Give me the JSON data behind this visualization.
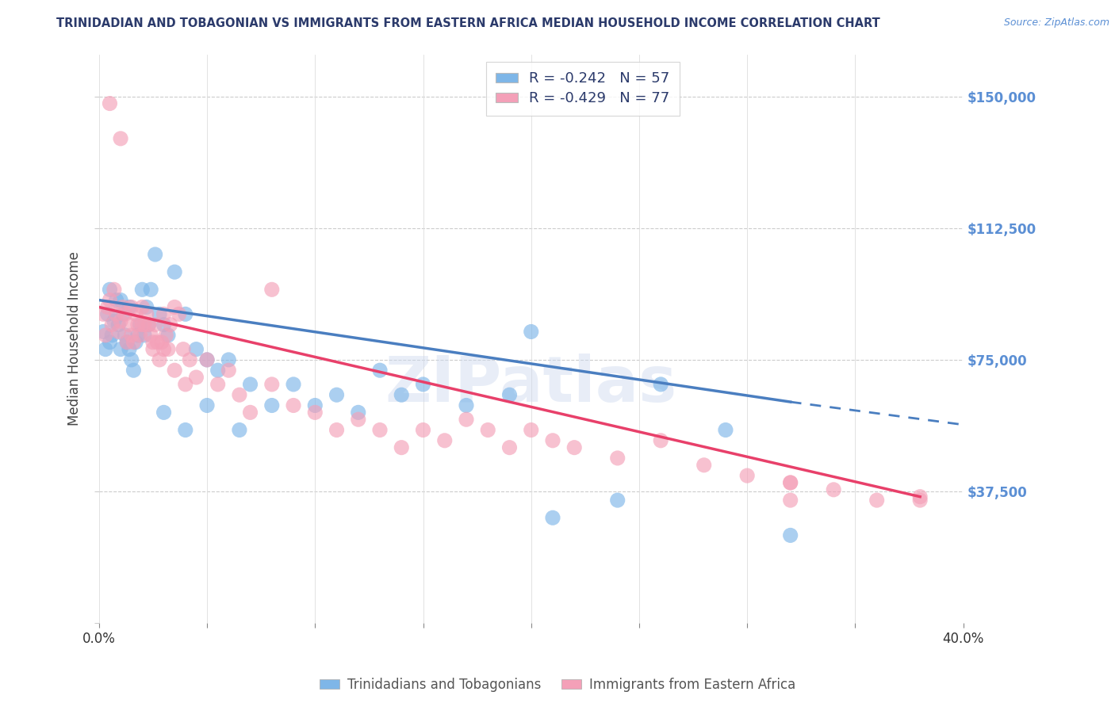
{
  "title": "TRINIDADIAN AND TOBAGONIAN VS IMMIGRANTS FROM EASTERN AFRICA MEDIAN HOUSEHOLD INCOME CORRELATION CHART",
  "source": "Source: ZipAtlas.com",
  "ylabel": "Median Household Income",
  "yticks": [
    0,
    37500,
    75000,
    112500,
    150000
  ],
  "ytick_labels": [
    "",
    "$37,500",
    "$75,000",
    "$112,500",
    "$150,000"
  ],
  "xlim": [
    0.0,
    40.0
  ],
  "ylim": [
    0,
    162000
  ],
  "watermark": "ZIPatlas",
  "legend_r1": "R = -0.242",
  "legend_n1": "N = 57",
  "legend_r2": "R = -0.429",
  "legend_n2": "N = 77",
  "color_blue": "#7EB6E8",
  "color_pink": "#F4A0B8",
  "color_blue_line": "#4A7EC0",
  "color_pink_line": "#E8406A",
  "color_title": "#2B3A6B",
  "color_source": "#5B8FD4",
  "color_ytick": "#5B8FD4",
  "blue_line_x0": 0.0,
  "blue_line_y0": 92000,
  "blue_line_x1": 32.0,
  "blue_line_y1": 63000,
  "blue_dash_x1": 40.0,
  "blue_dash_y1": 56500,
  "pink_line_x0": 0.0,
  "pink_line_y0": 90000,
  "pink_line_x1": 38.0,
  "pink_line_y1": 36000,
  "blue_scatter_x": [
    0.2,
    0.3,
    0.4,
    0.5,
    0.5,
    0.6,
    0.7,
    0.8,
    0.9,
    1.0,
    1.0,
    1.1,
    1.2,
    1.3,
    1.4,
    1.4,
    1.5,
    1.6,
    1.7,
    1.8,
    1.9,
    2.0,
    2.1,
    2.2,
    2.3,
    2.4,
    2.6,
    2.8,
    3.0,
    3.2,
    3.5,
    4.0,
    4.5,
    5.0,
    5.5,
    6.0,
    7.0,
    8.0,
    9.0,
    10.0,
    11.0,
    12.0,
    13.0,
    14.0,
    15.0,
    17.0,
    19.0,
    20.0,
    21.0,
    24.0,
    26.0,
    29.0,
    32.0,
    3.0,
    4.0,
    5.0,
    6.5
  ],
  "blue_scatter_y": [
    83000,
    78000,
    88000,
    95000,
    80000,
    82000,
    86000,
    92000,
    85000,
    78000,
    92000,
    88000,
    82000,
    80000,
    78000,
    90000,
    75000,
    72000,
    80000,
    82000,
    85000,
    95000,
    82000,
    90000,
    85000,
    95000,
    105000,
    88000,
    85000,
    82000,
    100000,
    88000,
    78000,
    75000,
    72000,
    75000,
    68000,
    62000,
    68000,
    62000,
    65000,
    60000,
    72000,
    65000,
    68000,
    62000,
    65000,
    83000,
    30000,
    35000,
    68000,
    55000,
    25000,
    60000,
    55000,
    62000,
    55000
  ],
  "pink_scatter_x": [
    0.2,
    0.3,
    0.4,
    0.5,
    0.6,
    0.7,
    0.8,
    0.9,
    1.0,
    1.1,
    1.2,
    1.3,
    1.4,
    1.5,
    1.6,
    1.7,
    1.8,
    1.9,
    2.0,
    2.1,
    2.2,
    2.3,
    2.4,
    2.5,
    2.6,
    2.7,
    2.8,
    2.9,
    3.0,
    3.1,
    3.2,
    3.3,
    3.5,
    3.7,
    3.9,
    4.2,
    4.5,
    5.0,
    5.5,
    6.0,
    6.5,
    7.0,
    8.0,
    9.0,
    10.0,
    11.0,
    12.0,
    13.0,
    14.0,
    15.0,
    16.0,
    17.0,
    18.0,
    19.0,
    20.0,
    21.0,
    22.0,
    24.0,
    26.0,
    28.0,
    30.0,
    32.0,
    34.0,
    36.0,
    38.0,
    2.0,
    2.5,
    3.0,
    3.5,
    4.0,
    0.5,
    1.0,
    8.0,
    32.0,
    32.0,
    38.0,
    1.5
  ],
  "pink_scatter_y": [
    88000,
    82000,
    90000,
    92000,
    85000,
    95000,
    88000,
    83000,
    86000,
    90000,
    88000,
    80000,
    85000,
    82000,
    80000,
    88000,
    85000,
    82000,
    90000,
    85000,
    88000,
    85000,
    82000,
    78000,
    85000,
    80000,
    75000,
    80000,
    88000,
    82000,
    78000,
    85000,
    90000,
    88000,
    78000,
    75000,
    70000,
    75000,
    68000,
    72000,
    65000,
    60000,
    68000,
    62000,
    60000,
    55000,
    58000,
    55000,
    50000,
    55000,
    52000,
    58000,
    55000,
    50000,
    55000,
    52000,
    50000,
    47000,
    52000,
    45000,
    42000,
    40000,
    38000,
    35000,
    36000,
    85000,
    80000,
    78000,
    72000,
    68000,
    148000,
    138000,
    95000,
    40000,
    35000,
    35000,
    90000
  ]
}
